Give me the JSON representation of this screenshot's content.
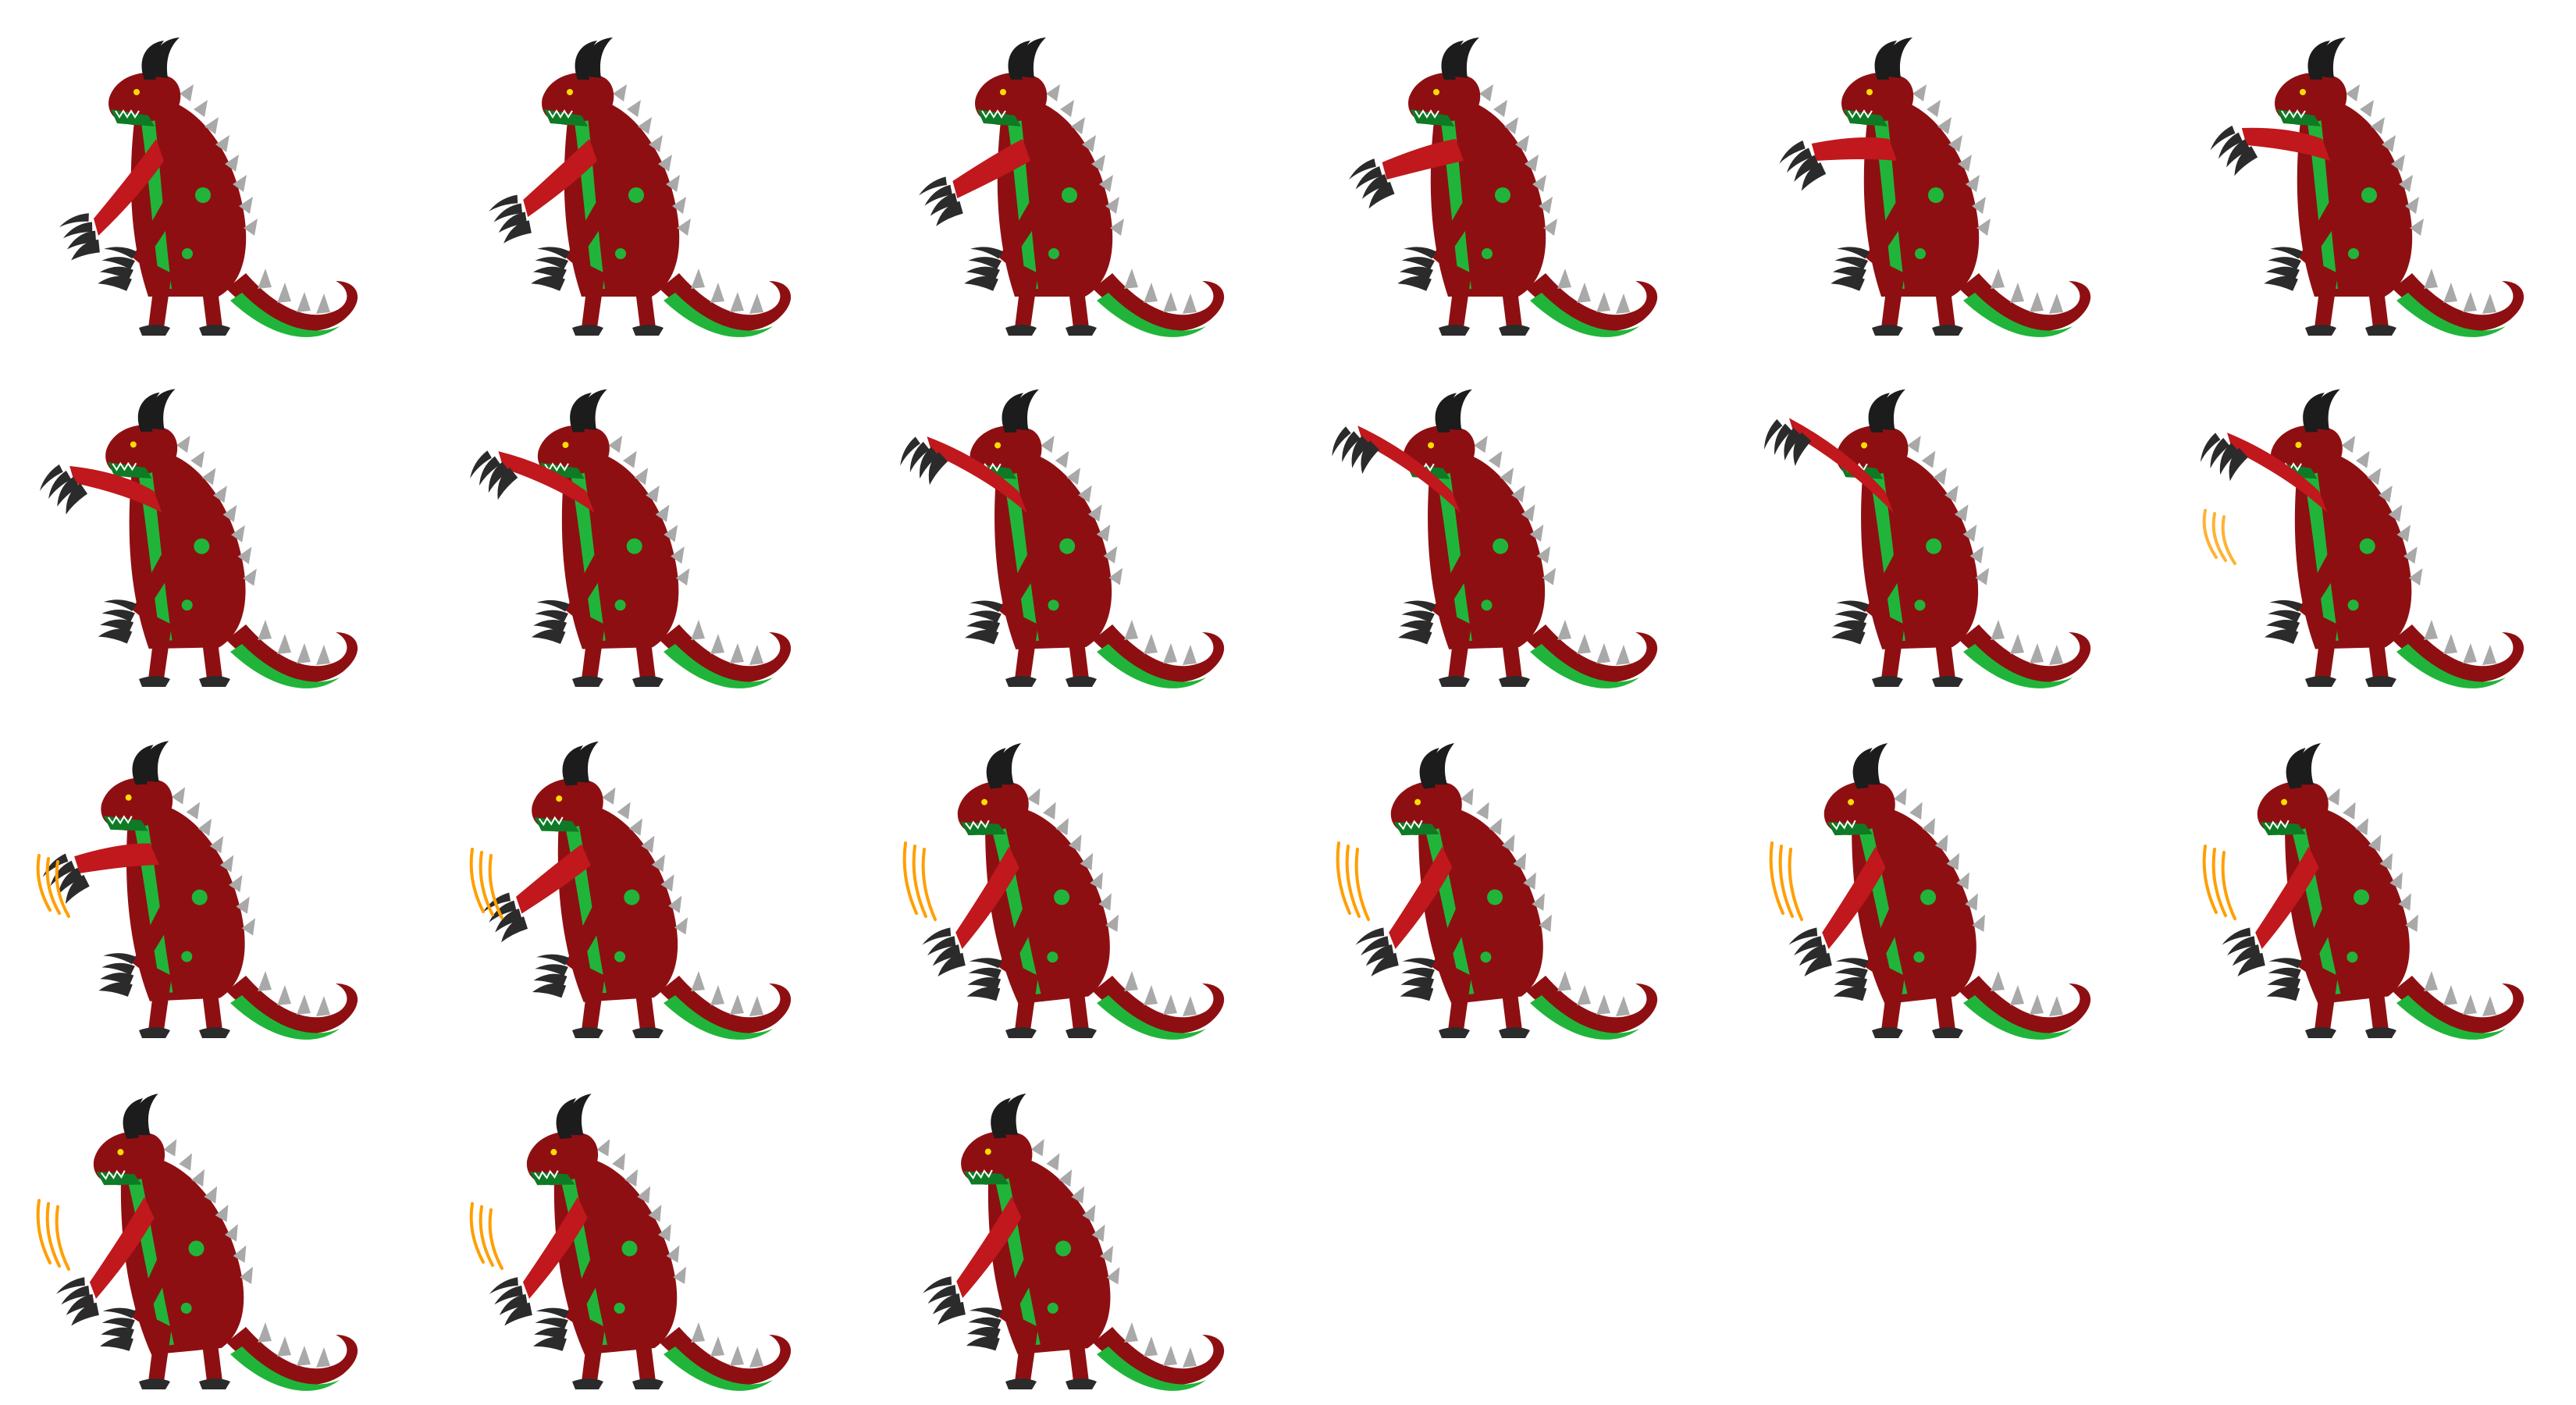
{
  "sprite_sheet": {
    "columns": 6,
    "rows": 4,
    "frame_count": 21,
    "background": "#ffffff",
    "colors": {
      "body": "#8e0f12",
      "body_highlight": "#c0181c",
      "belly": "#20b53a",
      "belly_dark": "#0e7a25",
      "spikes": "#a9a9a9",
      "horns": "#1c1c1c",
      "claws": "#2b2b2b",
      "slash": "#ff9f00"
    },
    "frames": [
      {
        "index": 1,
        "arm": 0.0,
        "lean": 0.0,
        "slash": 0
      },
      {
        "index": 2,
        "arm": 0.12,
        "lean": 0.0,
        "slash": 0
      },
      {
        "index": 3,
        "arm": 0.24,
        "lean": 0.0,
        "slash": 0
      },
      {
        "index": 4,
        "arm": 0.36,
        "lean": 0.0,
        "slash": 0
      },
      {
        "index": 5,
        "arm": 0.48,
        "lean": 0.0,
        "slash": 0
      },
      {
        "index": 6,
        "arm": 0.58,
        "lean": 0.0,
        "slash": 0
      },
      {
        "index": 7,
        "arm": 0.68,
        "lean": 0.06,
        "slash": 0
      },
      {
        "index": 8,
        "arm": 0.78,
        "lean": 0.08,
        "slash": 0
      },
      {
        "index": 9,
        "arm": 0.88,
        "lean": 0.1,
        "slash": 0
      },
      {
        "index": 10,
        "arm": 0.95,
        "lean": 0.1,
        "slash": 0
      },
      {
        "index": 11,
        "arm": 1.0,
        "lean": 0.1,
        "slash": 0
      },
      {
        "index": 12,
        "arm": 0.9,
        "lean": 0.08,
        "slash": 0.4
      },
      {
        "index": 13,
        "arm": 0.45,
        "lean": 0.15,
        "slash": 0.6
      },
      {
        "index": 14,
        "arm": 0.2,
        "lean": 0.2,
        "slash": 0.8
      },
      {
        "index": 15,
        "arm": 0.0,
        "lean": 0.35,
        "slash": 1.0
      },
      {
        "index": 16,
        "arm": 0.0,
        "lean": 0.35,
        "slash": 1.0
      },
      {
        "index": 17,
        "arm": 0.0,
        "lean": 0.35,
        "slash": 1.0
      },
      {
        "index": 18,
        "arm": 0.0,
        "lean": 0.35,
        "slash": 0.9
      },
      {
        "index": 19,
        "arm": 0.0,
        "lean": 0.3,
        "slash": 0.8
      },
      {
        "index": 20,
        "arm": 0.0,
        "lean": 0.3,
        "slash": 0.7
      },
      {
        "index": 21,
        "arm": 0.0,
        "lean": 0.28,
        "slash": 0
      }
    ]
  }
}
